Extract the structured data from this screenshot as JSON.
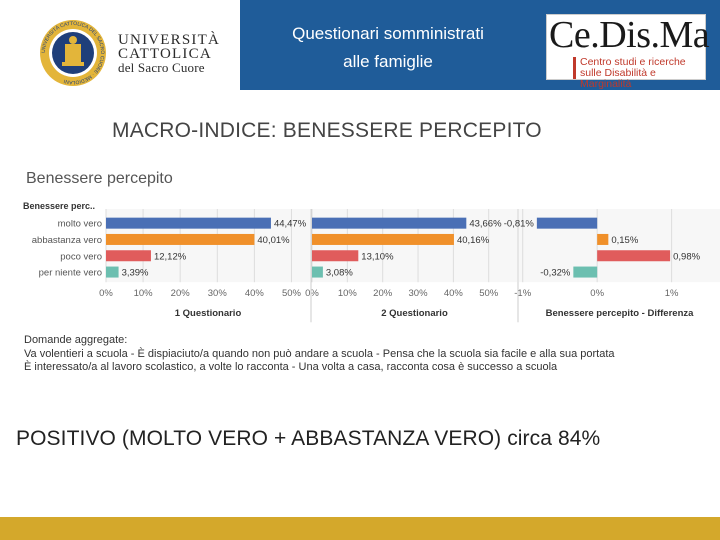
{
  "header": {
    "university": [
      "UNIVERSITÀ",
      "CATTOLICA",
      "del Sacro Cuore"
    ],
    "seal_text": "UNIVERSITÀ CATTOLICA DEL SACRO CUORE · MEDIOLANI",
    "title_lines": [
      "Questionari somministrati",
      "alle famiglie"
    ],
    "cedisma": {
      "name": "Ce.Dis.Ma",
      "subtitle_lines": [
        "Centro studi e ricerche",
        "sulle Disabilità e Marginalità"
      ]
    }
  },
  "section_title": "MACRO-INDICE: BENESSERE PERCEPITO",
  "chart_data": {
    "type": "bar",
    "orientation": "horizontal",
    "title": "Benessere percepito",
    "category_axis_title": "Benessere perc..",
    "categories": [
      "molto vero",
      "abbastanza vero",
      "poco vero",
      "per niente vero"
    ],
    "category_colors": [
      "#4a6fb5",
      "#f0902a",
      "#e05c5c",
      "#6cbfb0"
    ],
    "panels": [
      {
        "title": "1 Questionario",
        "values": [
          44.47,
          40.01,
          12.12,
          3.39
        ],
        "labels": [
          "44,47%",
          "40,01%",
          "12,12%",
          "3,39%"
        ],
        "xlim": [
          0,
          55
        ],
        "ticks": [
          0,
          10,
          20,
          30,
          40,
          50
        ],
        "tick_labels": [
          "0%",
          "10%",
          "20%",
          "30%",
          "40%",
          "50%"
        ]
      },
      {
        "title": "2 Questionario",
        "values": [
          43.66,
          40.16,
          13.1,
          3.08
        ],
        "labels": [
          "43,66%",
          "40,16%",
          "13,10%",
          "3,08%"
        ],
        "xlim": [
          0,
          58
        ],
        "ticks": [
          0,
          10,
          20,
          30,
          40,
          50
        ],
        "tick_labels": [
          "0%",
          "10%",
          "20%",
          "30%",
          "40%",
          "50%"
        ]
      },
      {
        "title": "Benessere percepito - Differenza",
        "values": [
          -0.81,
          0.15,
          0.98,
          -0.32
        ],
        "labels": [
          "-0,81%",
          "0,15%",
          "0,98%",
          "-0,32%"
        ],
        "xlim": [
          -1.05,
          1.65
        ],
        "ticks": [
          -1,
          0,
          1
        ],
        "tick_labels": [
          "-1%",
          "0%",
          "1%"
        ]
      }
    ],
    "legend": "none",
    "grid": true
  },
  "questions": {
    "heading": "Domande aggregate:",
    "line1": "Va volentieri a scuola - È dispiaciuto/a quando non può andare a scuola - Pensa che la scuola sia facile e alla sua portata",
    "line2": "È interessato/a al lavoro scolastico, a volte lo racconta - Una volta a casa, racconta cosa è successo a scuola"
  },
  "conclusion": "POSITIVO (MOLTO VERO + ABBASTANZA VERO) circa 84%",
  "colors": {
    "header_band": "#1f5c99",
    "footer_band": "#d4a82b"
  }
}
